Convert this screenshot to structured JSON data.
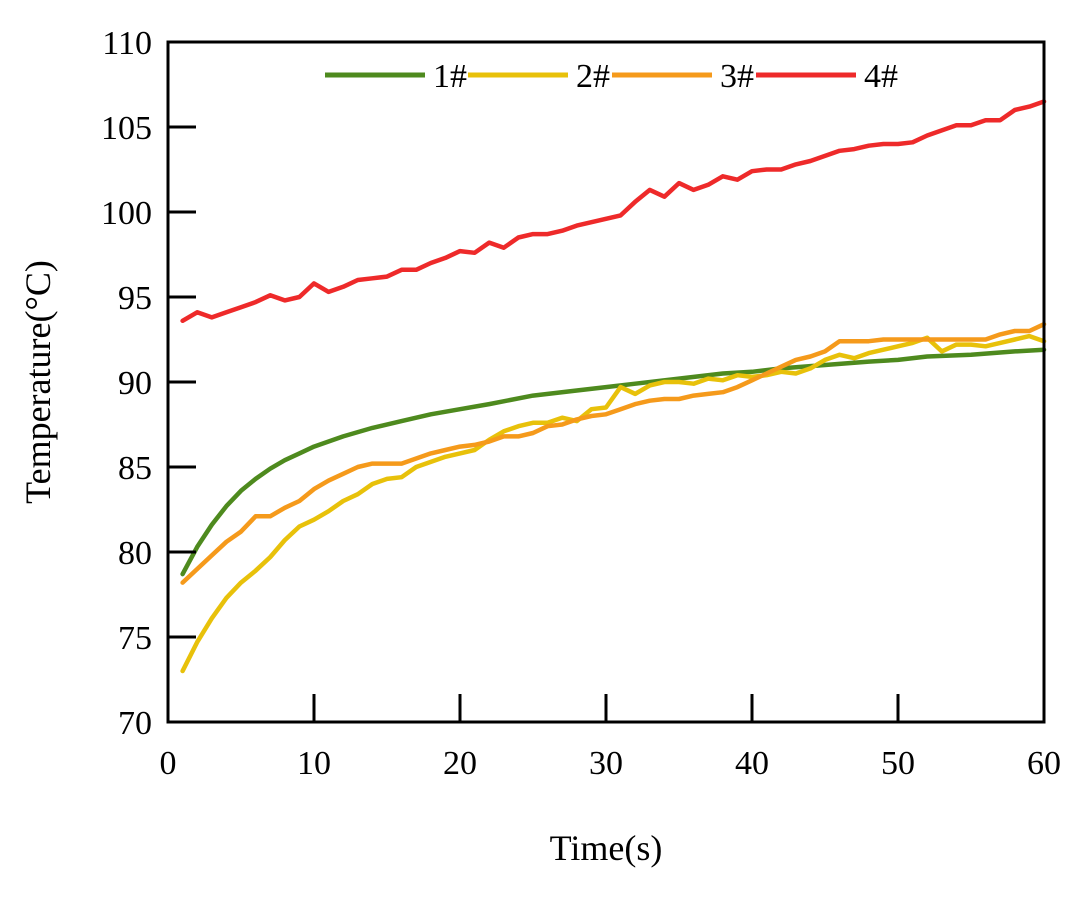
{
  "chart_data": {
    "type": "line",
    "title": "",
    "xlabel": "Time(s)",
    "ylabel": "Temperature(°C)",
    "xlim": [
      0,
      60
    ],
    "ylim": [
      70,
      110
    ],
    "xticks": [
      0,
      10,
      20,
      30,
      40,
      50,
      60
    ],
    "yticks": [
      70,
      75,
      80,
      85,
      90,
      95,
      100,
      105,
      110
    ],
    "grid": false,
    "legend_position": "top",
    "series": [
      {
        "name": "1#",
        "color": "#4e8a1e",
        "x": [
          1,
          2,
          3,
          4,
          5,
          6,
          7,
          8,
          9,
          10,
          12,
          14,
          16,
          18,
          20,
          22,
          25,
          28,
          30,
          32,
          35,
          38,
          40,
          42,
          45,
          48,
          50,
          52,
          55,
          58,
          60
        ],
        "y": [
          78.7,
          80.3,
          81.6,
          82.7,
          83.6,
          84.3,
          84.9,
          85.4,
          85.8,
          86.2,
          86.8,
          87.3,
          87.7,
          88.1,
          88.4,
          88.7,
          89.2,
          89.5,
          89.7,
          89.9,
          90.2,
          90.5,
          90.6,
          90.8,
          91.0,
          91.2,
          91.3,
          91.5,
          91.6,
          91.8,
          91.9
        ]
      },
      {
        "name": "2#",
        "color": "#e8c10a",
        "x": [
          1,
          2,
          3,
          4,
          5,
          6,
          7,
          8,
          9,
          10,
          11,
          12,
          13,
          14,
          15,
          16,
          17,
          18,
          19,
          20,
          21,
          22,
          23,
          24,
          25,
          26,
          27,
          28,
          29,
          30,
          31,
          32,
          33,
          34,
          35,
          36,
          37,
          38,
          39,
          40,
          41,
          42,
          43,
          44,
          45,
          46,
          47,
          48,
          49,
          50,
          51,
          52,
          53,
          54,
          55,
          56,
          57,
          58,
          59,
          60
        ],
        "y": [
          73.0,
          74.7,
          76.1,
          77.3,
          78.2,
          78.9,
          79.7,
          80.7,
          81.5,
          81.9,
          82.4,
          83.0,
          83.4,
          84.0,
          84.3,
          84.4,
          85.0,
          85.3,
          85.6,
          85.8,
          86.0,
          86.6,
          87.1,
          87.4,
          87.6,
          87.6,
          87.9,
          87.7,
          88.4,
          88.5,
          89.7,
          89.3,
          89.8,
          90.0,
          90.0,
          89.9,
          90.2,
          90.1,
          90.4,
          90.3,
          90.4,
          90.6,
          90.5,
          90.8,
          91.3,
          91.6,
          91.4,
          91.7,
          91.9,
          92.1,
          92.3,
          92.6,
          91.8,
          92.2,
          92.2,
          92.1,
          92.3,
          92.5,
          92.7,
          92.4
        ]
      },
      {
        "name": "3#",
        "color": "#f59a1b",
        "x": [
          1,
          2,
          3,
          4,
          5,
          6,
          7,
          8,
          9,
          10,
          11,
          12,
          13,
          14,
          15,
          16,
          17,
          18,
          19,
          20,
          21,
          22,
          23,
          24,
          25,
          26,
          27,
          28,
          29,
          30,
          31,
          32,
          33,
          34,
          35,
          36,
          37,
          38,
          39,
          40,
          41,
          42,
          43,
          44,
          45,
          46,
          47,
          48,
          49,
          50,
          51,
          52,
          53,
          54,
          55,
          56,
          57,
          58,
          59,
          60
        ],
        "y": [
          78.2,
          79.0,
          79.8,
          80.6,
          81.2,
          82.1,
          82.1,
          82.6,
          83.0,
          83.7,
          84.2,
          84.6,
          85.0,
          85.2,
          85.2,
          85.2,
          85.5,
          85.8,
          86.0,
          86.2,
          86.3,
          86.5,
          86.8,
          86.8,
          87.0,
          87.4,
          87.5,
          87.8,
          88.0,
          88.1,
          88.4,
          88.7,
          88.9,
          89.0,
          89.0,
          89.2,
          89.3,
          89.4,
          89.7,
          90.1,
          90.5,
          90.9,
          91.3,
          91.5,
          91.8,
          92.4,
          92.4,
          92.4,
          92.5,
          92.5,
          92.5,
          92.5,
          92.5,
          92.5,
          92.5,
          92.5,
          92.8,
          93.0,
          93.0,
          93.4
        ]
      },
      {
        "name": "4#",
        "color": "#ee2a2a",
        "x": [
          1,
          2,
          3,
          4,
          5,
          6,
          7,
          8,
          9,
          10,
          11,
          12,
          13,
          14,
          15,
          16,
          17,
          18,
          19,
          20,
          21,
          22,
          23,
          24,
          25,
          26,
          27,
          28,
          29,
          30,
          31,
          32,
          33,
          34,
          35,
          36,
          37,
          38,
          39,
          40,
          41,
          42,
          43,
          44,
          45,
          46,
          47,
          48,
          49,
          50,
          51,
          52,
          53,
          54,
          55,
          56,
          57,
          58,
          59,
          60
        ],
        "y": [
          93.6,
          94.1,
          93.8,
          94.1,
          94.4,
          94.7,
          95.1,
          94.8,
          95.0,
          95.8,
          95.3,
          95.6,
          96.0,
          96.1,
          96.2,
          96.6,
          96.6,
          97.0,
          97.3,
          97.7,
          97.6,
          98.2,
          97.9,
          98.5,
          98.7,
          98.7,
          98.9,
          99.2,
          99.4,
          99.6,
          99.8,
          100.6,
          101.3,
          100.9,
          101.7,
          101.3,
          101.6,
          102.1,
          101.9,
          102.4,
          102.5,
          102.5,
          102.8,
          103.0,
          103.3,
          103.6,
          103.7,
          103.9,
          104.0,
          104.0,
          104.1,
          104.5,
          104.8,
          105.1,
          105.1,
          105.4,
          105.4,
          106.0,
          106.2,
          106.5
        ]
      }
    ]
  }
}
